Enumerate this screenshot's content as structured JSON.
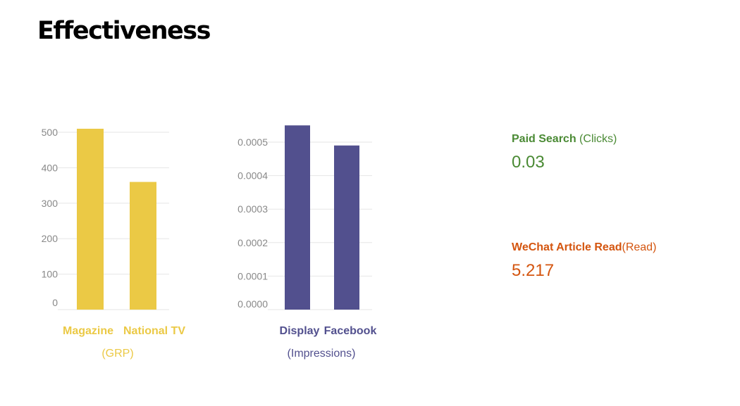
{
  "title": "Effectiveness",
  "colors": {
    "yellow": "#EBC945",
    "purple": "#52508E",
    "green": "#4A8A34",
    "orange": "#D4550F",
    "grid": "#E6E6E6",
    "tick": "#888888"
  },
  "chart_data": [
    {
      "type": "bar",
      "categories": [
        "Magazine",
        "National TV"
      ],
      "values": [
        510,
        360
      ],
      "unit": "(GRP)",
      "ylim": [
        0,
        500
      ],
      "yticks": [
        "0",
        "100",
        "200",
        "300",
        "400",
        "500"
      ],
      "grid": true
    },
    {
      "type": "bar",
      "categories": [
        "Display",
        "Facebook"
      ],
      "values": [
        0.00055,
        0.00049
      ],
      "unit": "(Impressions)",
      "ylim": [
        0,
        0.0005
      ],
      "yticks": [
        "0.0000",
        "0.0001",
        "0.0002",
        "0.0003",
        "0.0004",
        "0.0005"
      ],
      "grid": true
    }
  ],
  "metrics": [
    {
      "label": "Paid Search",
      "unit": " (Clicks)",
      "value": "0.03"
    },
    {
      "label": "WeChat Article Read",
      "unit": "(Read)",
      "value": "5.217"
    }
  ]
}
